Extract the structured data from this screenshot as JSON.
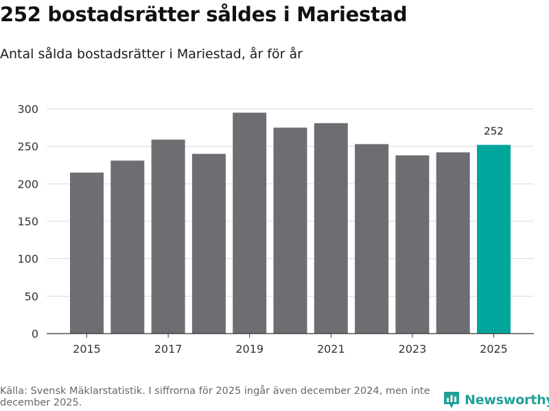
{
  "title": "252 bostadsrätter såldes i Mariestad",
  "subtitle": "Antal sålda bostadsrätter i Mariestad, år för år",
  "footer": "Källa: Svensk Mäklarstatistik. I siffrorna för 2025 ingår även december 2024, men inte december 2025.",
  "brand": {
    "name": "Newsworthy",
    "icon": "newsworthy-logo-icon",
    "color": "#1fa197"
  },
  "colors": {
    "bar": "#6e6d72",
    "highlight": "#00a69c",
    "grid": "#d9d9d9",
    "axis": "#333333"
  },
  "chart_data": {
    "type": "bar",
    "title": "Antal sålda bostadsrätter i Mariestad, år för år",
    "xlabel": "",
    "ylabel": "",
    "categories": [
      "2015",
      "2016",
      "2017",
      "2018",
      "2019",
      "2020",
      "2021",
      "2022",
      "2023",
      "2024",
      "2025"
    ],
    "values": [
      215,
      231,
      259,
      240,
      295,
      275,
      281,
      253,
      238,
      242,
      252
    ],
    "highlight_index": 10,
    "data_label": "252",
    "x_tick_labels": [
      "2015",
      "2017",
      "2019",
      "2021",
      "2023",
      "2025"
    ],
    "y_ticks": [
      0,
      50,
      100,
      150,
      200,
      250,
      300
    ],
    "ylim": [
      0,
      310
    ],
    "grid": true
  }
}
